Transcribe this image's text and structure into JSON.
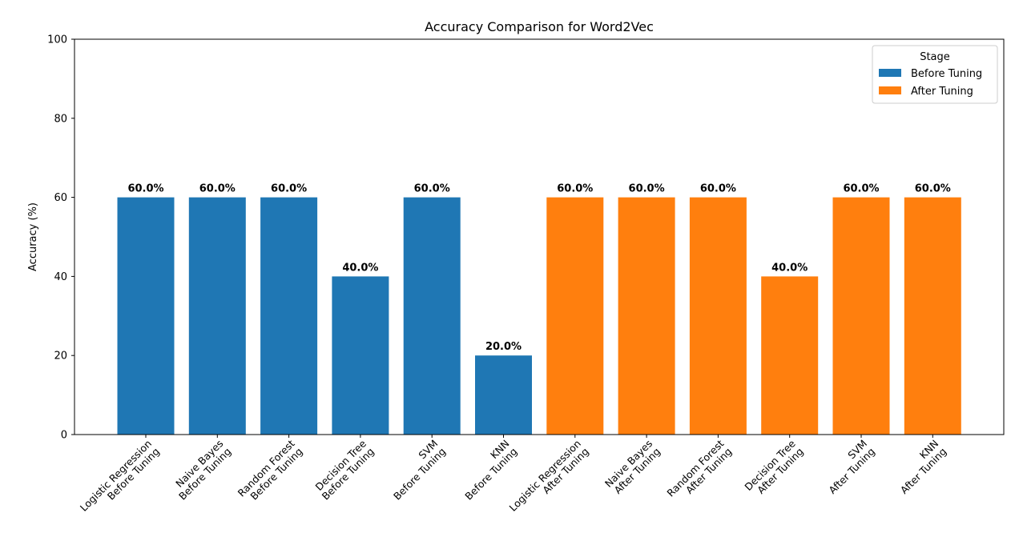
{
  "chart_data": {
    "type": "bar",
    "title": "Accuracy Comparison for Word2Vec",
    "xlabel": "",
    "ylabel": "Accuracy (%)",
    "ylim": [
      0,
      100
    ],
    "yticks": [
      0,
      20,
      40,
      60,
      80,
      100
    ],
    "grid": false,
    "categories": [
      [
        "Logistic Regression",
        "Before Tuning"
      ],
      [
        "Naive Bayes",
        "Before Tuning"
      ],
      [
        "Random Forest",
        "Before Tuning"
      ],
      [
        "Decision Tree",
        "Before Tuning"
      ],
      [
        "SVM",
        "Before Tuning"
      ],
      [
        "KNN",
        "Before Tuning"
      ],
      [
        "Logistic Regression",
        "After Tuning"
      ],
      [
        "Naive Bayes",
        "After Tuning"
      ],
      [
        "Random Forest",
        "After Tuning"
      ],
      [
        "Decision Tree",
        "After Tuning"
      ],
      [
        "SVM",
        "After Tuning"
      ],
      [
        "KNN",
        "After Tuning"
      ]
    ],
    "values": [
      60,
      60,
      60,
      40,
      60,
      20,
      60,
      60,
      60,
      40,
      60,
      60
    ],
    "value_labels": [
      "60.0%",
      "60.0%",
      "60.0%",
      "40.0%",
      "60.0%",
      "20.0%",
      "60.0%",
      "60.0%",
      "60.0%",
      "40.0%",
      "60.0%",
      "60.0%"
    ],
    "bar_stage": [
      0,
      0,
      0,
      0,
      0,
      0,
      1,
      1,
      1,
      1,
      1,
      1
    ],
    "legend": {
      "title": "Stage",
      "placement": "top-right",
      "entries": [
        {
          "label": "Before Tuning",
          "color": "#1f77b4"
        },
        {
          "label": "After Tuning",
          "color": "#ff7f0e"
        }
      ]
    },
    "colors": {
      "before": "#1f77b4",
      "after": "#ff7f0e"
    }
  }
}
